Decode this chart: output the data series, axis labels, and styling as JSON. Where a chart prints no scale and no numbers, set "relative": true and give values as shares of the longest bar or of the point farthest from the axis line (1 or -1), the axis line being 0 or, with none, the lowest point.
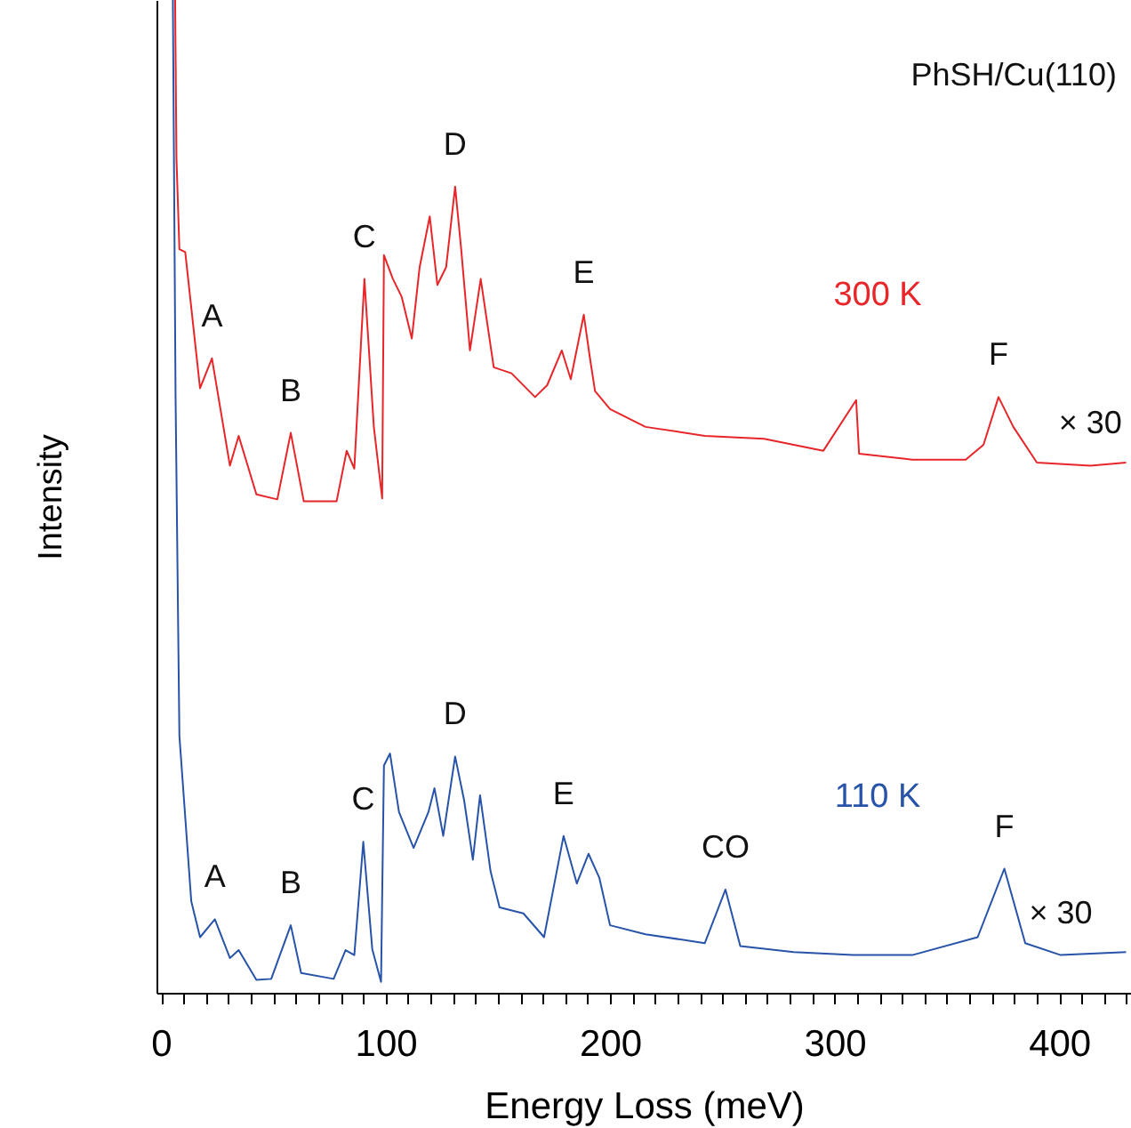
{
  "chart_data": {
    "type": "line",
    "relative": true,
    "xlabel": "Energy Loss (meV)",
    "ylabel": "Intensity",
    "xlim": [
      -2,
      432
    ],
    "xticks": [
      0,
      {
        "value": 10,
        "label": null
      },
      {
        "value": 20,
        "label": null
      },
      {
        "value": 30,
        "label": null
      },
      {
        "value": 40,
        "label": null
      },
      {
        "value": 50,
        "label": null
      },
      {
        "value": 60,
        "label": null
      },
      {
        "value": 70,
        "label": null
      },
      {
        "value": 80,
        "label": null
      },
      {
        "value": 90,
        "label": null
      },
      100,
      {
        "value": 110,
        "label": null
      },
      {
        "value": 120,
        "label": null
      },
      {
        "value": 130,
        "label": null
      },
      {
        "value": 140,
        "label": null
      },
      {
        "value": 150,
        "label": null
      },
      {
        "value": 160,
        "label": null
      },
      {
        "value": 170,
        "label": null
      },
      {
        "value": 180,
        "label": null
      },
      {
        "value": 190,
        "label": null
      },
      200,
      {
        "value": 210,
        "label": null
      },
      {
        "value": 220,
        "label": null
      },
      {
        "value": 230,
        "label": null
      },
      {
        "value": 240,
        "label": null
      },
      {
        "value": 250,
        "label": null
      },
      {
        "value": 260,
        "label": null
      },
      {
        "value": 270,
        "label": null
      },
      {
        "value": 280,
        "label": null
      },
      {
        "value": 290,
        "label": null
      },
      300,
      {
        "value": 310,
        "label": null
      },
      {
        "value": 320,
        "label": null
      },
      {
        "value": 330,
        "label": null
      },
      {
        "value": 340,
        "label": null
      },
      {
        "value": 350,
        "label": null
      },
      {
        "value": 360,
        "label": null
      },
      {
        "value": 370,
        "label": null
      },
      {
        "value": 380,
        "label": null
      },
      {
        "value": 390,
        "label": null
      },
      400,
      {
        "value": 410,
        "label": null
      },
      {
        "value": 420,
        "label": null
      },
      {
        "value": 430,
        "label": null
      }
    ],
    "series": [
      {
        "name": "300 K",
        "color": "#e8262a",
        "x": [
          6.3,
          6.9,
          8.2,
          10.8,
          17.4,
          22.7,
          30.7,
          34.6,
          42.5,
          51.8,
          57.8,
          63.6,
          78.2,
          82.7,
          86.1,
          90.6,
          94.8,
          98.5,
          99.3,
          103.3,
          107.2,
          111.7,
          115.2,
          119.7,
          123.1,
          127,
          131,
          133.7,
          137.6,
          142.4,
          148.2,
          156.1,
          166.6,
          172,
          178.5,
          182.5,
          188.3,
          191,
          193.3,
          200,
          215.8,
          242.2,
          268.6,
          295,
          309.6,
          310.9,
          334.6,
          358.4,
          366.3,
          373,
          379.6,
          390.1,
          413.9,
          429.8
        ],
        "values": [
          1,
          0.84,
          0.749,
          0.746,
          0.609,
          0.639,
          0.531,
          0.561,
          0.502,
          0.497,
          0.564,
          0.495,
          0.495,
          0.546,
          0.528,
          0.719,
          0.57,
          0.498,
          0.743,
          0.719,
          0.701,
          0.659,
          0.731,
          0.782,
          0.713,
          0.731,
          0.812,
          0.749,
          0.647,
          0.719,
          0.63,
          0.624,
          0.6,
          0.612,
          0.647,
          0.618,
          0.683,
          0.64,
          0.606,
          0.588,
          0.57,
          0.561,
          0.558,
          0.546,
          0.597,
          0.543,
          0.537,
          0.537,
          0.552,
          0.6,
          0.57,
          0.534,
          0.531,
          0.534
        ]
      },
      {
        "name": "110 K",
        "color": "#2753a8",
        "x": [
          5.3,
          6.5,
          8.2,
          13.5,
          17.4,
          24,
          30.7,
          34.6,
          42.5,
          49.1,
          57.8,
          62.4,
          76.9,
          82.2,
          86.1,
          90.1,
          94.1,
          98,
          99.3,
          102,
          106,
          112.5,
          119.1,
          121.8,
          125.7,
          131,
          135,
          138.9,
          142.1,
          146.8,
          150.8,
          161.4,
          170.6,
          179.3,
          185.2,
          190.4,
          195.2,
          200,
          215.8,
          242.2,
          251.4,
          258,
          281.8,
          308.2,
          334.6,
          363.7,
          375.6,
          384.9,
          400.7,
          429.8
        ],
        "values": [
          1,
          0.6,
          0.259,
          0.092,
          0.056,
          0.074,
          0.035,
          0.043,
          0.013,
          0.014,
          0.068,
          0.02,
          0.014,
          0.043,
          0.038,
          0.152,
          0.044,
          0.011,
          0.229,
          0.241,
          0.182,
          0.146,
          0.182,
          0.206,
          0.158,
          0.238,
          0.194,
          0.134,
          0.199,
          0.122,
          0.086,
          0.08,
          0.056,
          0.158,
          0.11,
          0.14,
          0.116,
          0.068,
          0.059,
          0.05,
          0.104,
          0.047,
          0.041,
          0.038,
          0.038,
          0.056,
          0.125,
          0.05,
          0.038,
          0.041
        ]
      }
    ],
    "annotations": [
      "PhSH/Cu(110)",
      {
        "text": "A",
        "x": 22.7,
        "y": 0.639
      },
      {
        "text": "B",
        "x": 57.8,
        "y": 0.564
      },
      {
        "text": "C",
        "x": 90.6,
        "y": 0.719
      },
      {
        "text": "D",
        "x": 131,
        "y": 0.812
      },
      {
        "text": "E",
        "x": 188.3,
        "y": 0.683
      },
      {
        "text": "F",
        "x": 373,
        "y": 0.6
      },
      {
        "text": "× 30",
        "x": 413.9,
        "y": 0.531
      },
      {
        "text": "A",
        "x": 24,
        "y": 0.074
      },
      {
        "text": "B",
        "x": 57.8,
        "y": 0.068
      },
      {
        "text": "C",
        "x": 90.1,
        "y": 0.152
      },
      {
        "text": "D",
        "x": 131,
        "y": 0.238
      },
      {
        "text": "E",
        "x": 179.3,
        "y": 0.158
      },
      {
        "text": "CO",
        "x": 251.4,
        "y": 0.104
      },
      {
        "text": "F",
        "x": 375.6,
        "y": 0.125
      },
      {
        "text": "× 30",
        "x": 400.7,
        "y": 0.038
      }
    ]
  }
}
